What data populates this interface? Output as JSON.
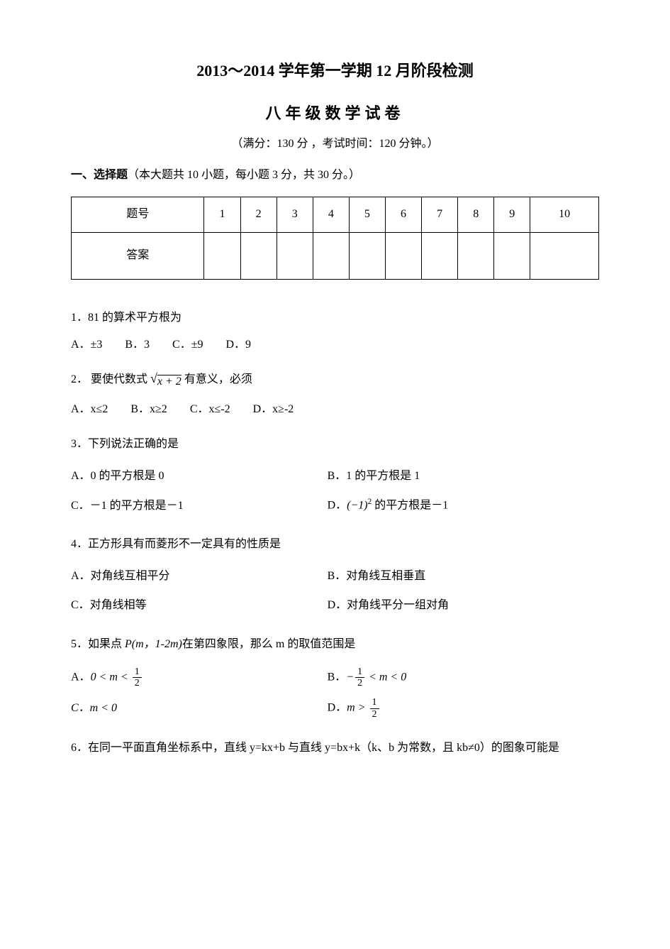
{
  "title_main": "2013～2014 学年第一学期 12 月阶段检测",
  "title_sub": "八年级数学试卷",
  "meta": "（满分：130 分 ，考试时间：120 分钟。）",
  "section1_heading_bold": "一、选择题",
  "section1_heading_rest": "（本大题共 10 小题，每小题 3 分，共 30 分。）",
  "table": {
    "header_label": "题号",
    "numbers": [
      "1",
      "2",
      "3",
      "4",
      "5",
      "6",
      "7",
      "8",
      "9",
      "10"
    ],
    "answer_label": "答案"
  },
  "q1": {
    "text": "1．81 的算术平方根为",
    "A": "A．±3",
    "B": "B．3",
    "C": "C．±9",
    "D": "D．9"
  },
  "q2": {
    "prefix": "2． 要使代数式",
    "radicand": "x + 2",
    "suffix": "有意义，必须",
    "A": "A．x≤2",
    "B": "B．x≥2",
    "C": "C．x≤-2",
    "D": "D．x≥-2"
  },
  "q3": {
    "text": "3．下列说法正确的是",
    "A": "A．0 的平方根是 0",
    "B": "B．1 的平方根是 1",
    "C": "C．－1 的平方根是－1",
    "D_prefix": "D．",
    "D_base": "(−1)",
    "D_expo": "2",
    "D_suffix": " 的平方根是－1"
  },
  "q4": {
    "text": "4．正方形具有而菱形不一定具有的性质是",
    "A": "A．对角线互相平分",
    "B": "B．对角线互相垂直",
    "C": "C．对角线相等",
    "D": "D．对角线平分一组对角"
  },
  "q5": {
    "text_prefix": "5．如果点 ",
    "point": "P(m，1-2m)",
    "text_suffix": "在第四象限，那么 m 的取值范围是",
    "A_prefix": "A．",
    "A_lhs": "0 < m < ",
    "B_prefix": "B．",
    "B_lhs_neg": "−",
    "B_mid": " < m < 0",
    "C": "C．m < 0",
    "D_prefix": "D．",
    "D_lhs": "m > ",
    "frac_num": "1",
    "frac_den": "2"
  },
  "q6": {
    "text": "6．在同一平面直角坐标系中，直线 y=kx+b 与直线 y=bx+k（k、b 为常数，且 kb≠0）的图象可能是"
  }
}
